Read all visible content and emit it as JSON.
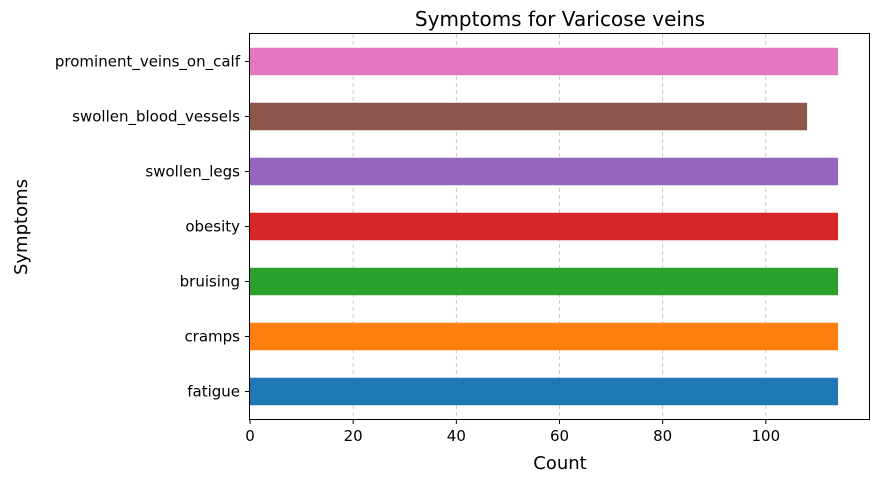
{
  "chart_data": {
    "type": "bar",
    "orientation": "horizontal",
    "title": "Symptoms for Varicose veins",
    "xlabel": "Count",
    "ylabel": "Symptoms",
    "categories": [
      "fatigue",
      "cramps",
      "bruising",
      "obesity",
      "swollen_legs",
      "swollen_blood_vessels",
      "prominent_veins_on_calf"
    ],
    "values": [
      114,
      114,
      114,
      114,
      114,
      108,
      114
    ],
    "colors": [
      "#1f77b4",
      "#ff7f0e",
      "#2ca02c",
      "#d62728",
      "#9467bd",
      "#8c564b",
      "#e377c2"
    ],
    "xlim": [
      0,
      120
    ],
    "xticks": [
      0,
      20,
      40,
      60,
      80,
      100
    ],
    "grid": "x, dashed",
    "legend": "none"
  }
}
